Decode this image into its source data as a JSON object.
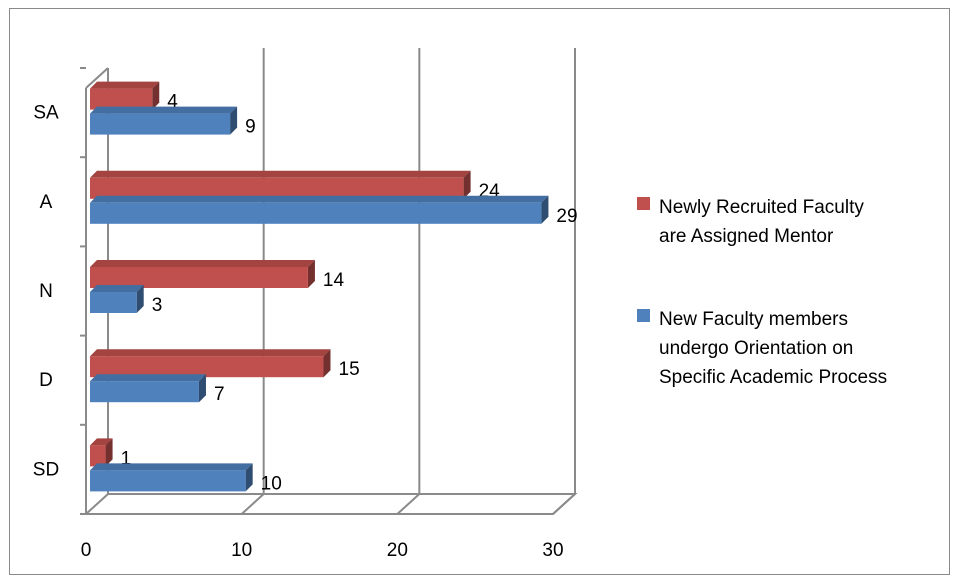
{
  "chart_data": {
    "type": "bar",
    "orientation": "horizontal",
    "style": "3d-clustered",
    "categories": [
      "SD",
      "D",
      "N",
      "A",
      "SA"
    ],
    "series": [
      {
        "name": "Newly Recruited  Faculty are Assigned Mentor",
        "legend_lines": [
          "Newly Recruited  Faculty",
          "are Assigned Mentor"
        ],
        "color": "#C0504D",
        "values": [
          1,
          15,
          14,
          24,
          4
        ]
      },
      {
        "name": "New Faculty members undergo Orientation on Specific Academic Process",
        "legend_lines": [
          "New Faculty members",
          "undergo Orientation on",
          "Specific Academic Process"
        ],
        "color": "#4F81BD",
        "values": [
          10,
          7,
          3,
          29,
          9
        ]
      }
    ],
    "x_ticks": [
      "0",
      "10",
      "20",
      "30"
    ],
    "xlim": [
      0,
      30
    ],
    "grid": true,
    "legend_position": "right",
    "data_labels": true,
    "title": "",
    "xlabel": "",
    "ylabel": ""
  }
}
